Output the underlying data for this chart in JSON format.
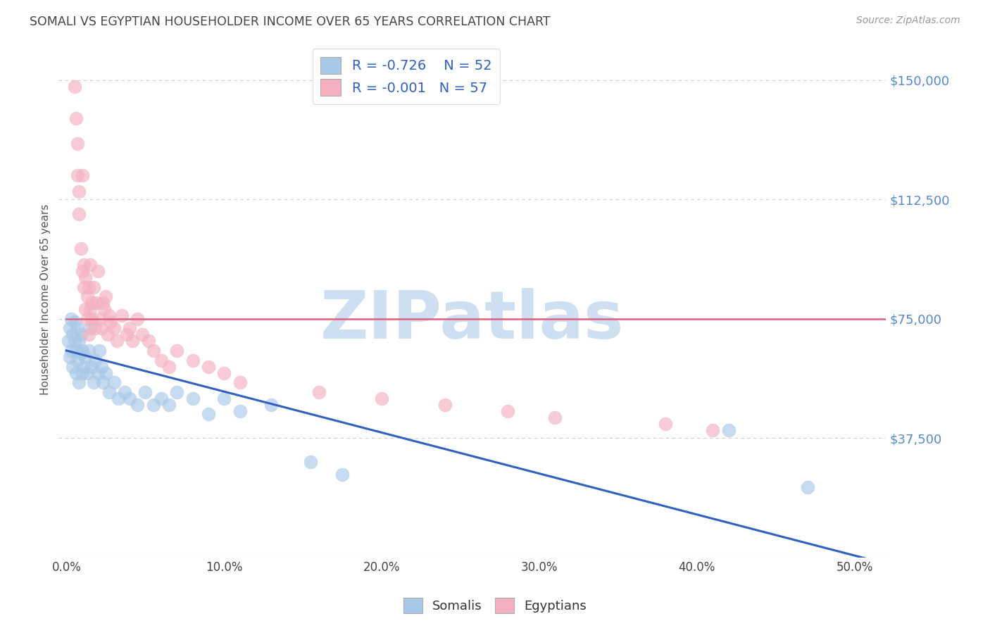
{
  "title": "SOMALI VS EGYPTIAN HOUSEHOLDER INCOME OVER 65 YEARS CORRELATION CHART",
  "source": "Source: ZipAtlas.com",
  "xlabel_ticks": [
    "0.0%",
    "10.0%",
    "20.0%",
    "30.0%",
    "40.0%",
    "50.0%"
  ],
  "xlabel_vals": [
    0.0,
    0.1,
    0.2,
    0.3,
    0.4,
    0.5
  ],
  "ylabel": "Householder Income Over 65 years",
  "ytick_vals": [
    0,
    37500,
    75000,
    112500,
    150000
  ],
  "ytick_labels": [
    "",
    "$37,500",
    "$75,000",
    "$112,500",
    "$150,000"
  ],
  "ylim": [
    0,
    162000
  ],
  "xlim": [
    -0.005,
    0.52
  ],
  "somali_R": -0.726,
  "somali_N": 52,
  "egyptian_R": -0.001,
  "egyptian_N": 57,
  "somali_color": "#a8c8e8",
  "egyptian_color": "#f4b0c0",
  "somali_line_color": "#3060c0",
  "egyptian_line_color": "#e06080",
  "legend_text_color": "#3060c0",
  "watermark": "ZIPatlas",
  "watermark_color": "#cddff0",
  "background_color": "#ffffff",
  "grid_color": "#cccccc",
  "title_color": "#444444",
  "axis_label_color": "#5588cc",
  "somali_x": [
    0.001,
    0.002,
    0.002,
    0.003,
    0.003,
    0.004,
    0.004,
    0.005,
    0.005,
    0.006,
    0.006,
    0.007,
    0.007,
    0.008,
    0.008,
    0.009,
    0.009,
    0.01,
    0.01,
    0.011,
    0.012,
    0.013,
    0.014,
    0.015,
    0.016,
    0.017,
    0.018,
    0.02,
    0.021,
    0.022,
    0.023,
    0.025,
    0.027,
    0.03,
    0.033,
    0.037,
    0.04,
    0.045,
    0.05,
    0.055,
    0.06,
    0.065,
    0.07,
    0.08,
    0.09,
    0.1,
    0.11,
    0.13,
    0.155,
    0.175,
    0.42,
    0.47
  ],
  "somali_y": [
    68000,
    72000,
    63000,
    75000,
    65000,
    70000,
    60000,
    68000,
    74000,
    65000,
    58000,
    72000,
    62000,
    68000,
    55000,
    64000,
    70000,
    58000,
    65000,
    60000,
    63000,
    58000,
    65000,
    72000,
    60000,
    55000,
    62000,
    58000,
    65000,
    60000,
    55000,
    58000,
    52000,
    55000,
    50000,
    52000,
    50000,
    48000,
    52000,
    48000,
    50000,
    48000,
    52000,
    50000,
    45000,
    50000,
    46000,
    48000,
    30000,
    26000,
    40000,
    22000
  ],
  "egyptian_x": [
    0.005,
    0.006,
    0.007,
    0.007,
    0.008,
    0.008,
    0.009,
    0.01,
    0.01,
    0.011,
    0.011,
    0.012,
    0.012,
    0.013,
    0.013,
    0.014,
    0.014,
    0.015,
    0.015,
    0.016,
    0.016,
    0.017,
    0.018,
    0.019,
    0.02,
    0.021,
    0.022,
    0.023,
    0.024,
    0.025,
    0.026,
    0.027,
    0.028,
    0.03,
    0.032,
    0.035,
    0.038,
    0.04,
    0.042,
    0.045,
    0.048,
    0.052,
    0.055,
    0.06,
    0.065,
    0.07,
    0.08,
    0.09,
    0.1,
    0.11,
    0.16,
    0.2,
    0.24,
    0.28,
    0.31,
    0.38,
    0.41
  ],
  "egyptian_y": [
    148000,
    138000,
    130000,
    120000,
    115000,
    108000,
    97000,
    90000,
    120000,
    85000,
    92000,
    78000,
    88000,
    82000,
    75000,
    85000,
    70000,
    92000,
    78000,
    75000,
    80000,
    85000,
    72000,
    80000,
    90000,
    75000,
    72000,
    80000,
    78000,
    82000,
    70000,
    76000,
    74000,
    72000,
    68000,
    76000,
    70000,
    72000,
    68000,
    75000,
    70000,
    68000,
    65000,
    62000,
    60000,
    65000,
    62000,
    60000,
    58000,
    55000,
    52000,
    50000,
    48000,
    46000,
    44000,
    42000,
    40000
  ],
  "somali_line_x0": 0.0,
  "somali_line_y0": 65000,
  "somali_line_x1": 0.52,
  "somali_line_y1": -2000,
  "egyptian_line_x0": 0.0,
  "egyptian_line_y0": 75000,
  "egyptian_line_x1": 0.52,
  "egyptian_line_y1": 75000
}
